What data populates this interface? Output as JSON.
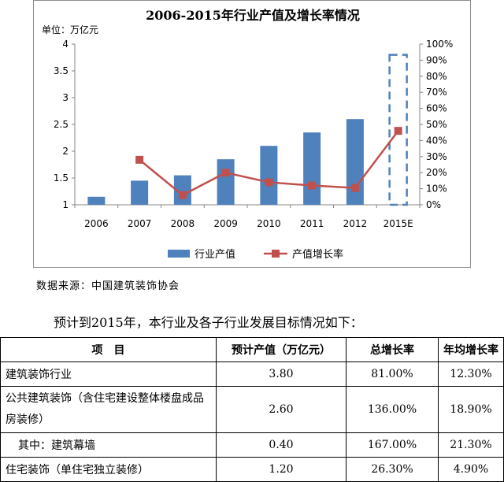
{
  "chart_data": {
    "type": "bar+line",
    "title": "2006-2015年行业产值及增长率情况",
    "unit_label": "单位：万亿元",
    "categories": [
      "2006",
      "2007",
      "2008",
      "2009",
      "2010",
      "2011",
      "2012",
      "2015E"
    ],
    "series": [
      {
        "name": "行业产值",
        "type": "bar",
        "axis": "left",
        "color": "#4f81bd",
        "values": [
          1.15,
          1.45,
          1.55,
          1.85,
          2.1,
          2.35,
          2.6,
          3.8
        ],
        "estimated_index": 7
      },
      {
        "name": "产值增长率",
        "type": "line",
        "axis": "right",
        "color": "#c0504d",
        "values": [
          null,
          28,
          6,
          20,
          14,
          12,
          10.5,
          46
        ]
      }
    ],
    "y_left": {
      "min": 1,
      "max": 4,
      "ticks": [
        "1",
        "1.5",
        "2",
        "2.5",
        "3",
        "3.5",
        "4"
      ]
    },
    "y_right": {
      "min": 0,
      "max": 100,
      "ticks": [
        "0%",
        "10%",
        "20%",
        "30%",
        "40%",
        "50%",
        "60%",
        "70%",
        "80%",
        "90%",
        "100%"
      ]
    },
    "legend_position": "bottom"
  },
  "source_text": "数据来源：中国建筑装饰协会",
  "intro_text": "预计到2015年，本行业及各子行业发展目标情况如下：",
  "table": {
    "headers": [
      "项　目",
      "预计产值（万亿元）",
      "总增长率",
      "年均增长率"
    ],
    "rows": [
      {
        "name": "建筑装饰行业",
        "value": "3.80",
        "total": "81.00%",
        "annual": "12.30%"
      },
      {
        "name": "公共建筑装饰（含住宅建设整体楼盘成品房装修）",
        "value": "2.60",
        "total": "136.00%",
        "annual": "18.90%"
      },
      {
        "name": "其中：建筑幕墙",
        "value": "0.40",
        "total": "167.00%",
        "annual": "21.30%"
      },
      {
        "name": "住宅装饰（单住宅独立装修）",
        "value": "1.20",
        "total": "26.30%",
        "annual": "4.90%"
      }
    ]
  }
}
